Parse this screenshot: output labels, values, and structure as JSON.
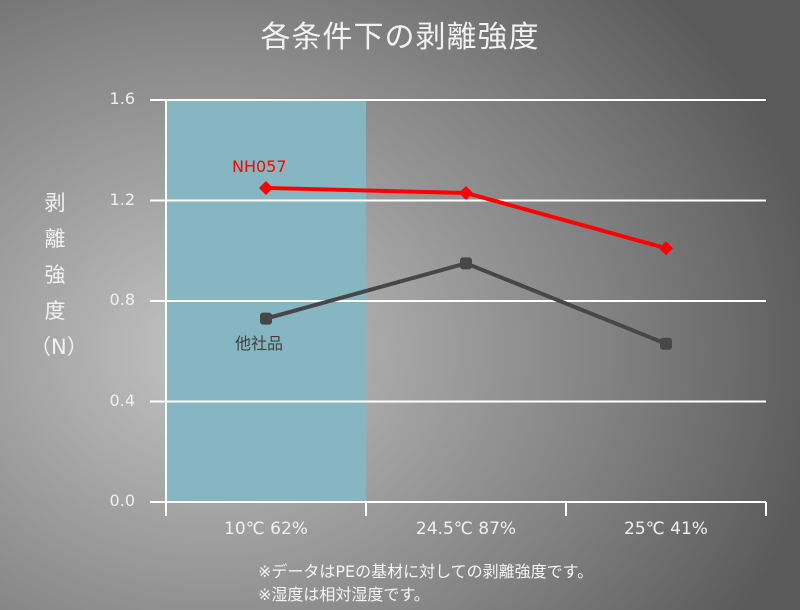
{
  "chart_data": {
    "type": "line",
    "title": "各条件下の剥離強度",
    "xlabel": "",
    "ylabel": "剥離強度（N）",
    "ylabel_chars": [
      "剥",
      "離",
      "強",
      "度",
      "（N）"
    ],
    "categories": [
      "10℃ 62%",
      "24.5℃ 87%",
      "25℃ 41%"
    ],
    "y_ticks": [
      "1.6",
      "1.2",
      "0.8",
      "0.4",
      "0.0"
    ],
    "ylim": [
      0,
      1.6
    ],
    "grid": true,
    "highlight_region": {
      "category": "10℃ 62%",
      "color": "#85b6c2"
    },
    "series": [
      {
        "name": "NH057",
        "values": [
          1.25,
          1.23,
          1.01
        ],
        "color": "#ff0000",
        "marker": "diamond"
      },
      {
        "name": "他社品",
        "values": [
          0.73,
          0.95,
          0.63
        ],
        "color": "#474747",
        "marker": "square"
      }
    ],
    "notes": [
      "※データはPEの基材に対しての剥離強度です。",
      "※湿度は相対湿度です。"
    ]
  }
}
